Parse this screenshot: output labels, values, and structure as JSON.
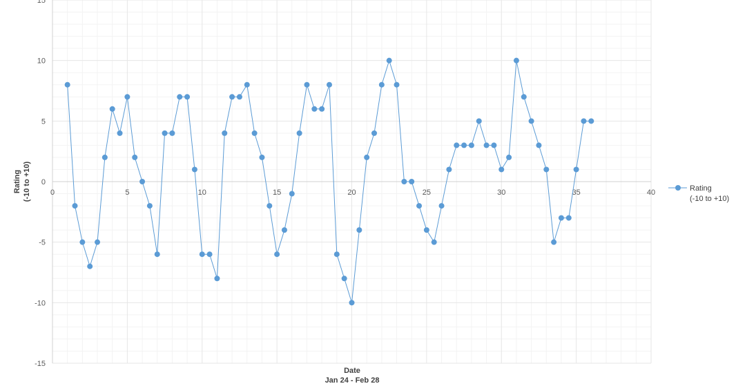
{
  "chart_data": {
    "type": "line",
    "title": "",
    "xlabel": "Date",
    "xlabel_sub": "Jan 24 - Feb 28",
    "ylabel": "Rating",
    "ylabel_sub": "(-10 to +10)",
    "xlim": [
      0,
      40
    ],
    "ylim": [
      -15,
      15
    ],
    "x_ticks": [
      0,
      5,
      10,
      15,
      20,
      25,
      30,
      35,
      40
    ],
    "y_ticks": [
      -15,
      -10,
      -5,
      0,
      5,
      10,
      15
    ],
    "grid": true,
    "minor_grid": true,
    "legend_position": "right",
    "series": [
      {
        "name": "Rating (-10 to +10)",
        "legend_line1": "Rating",
        "legend_line2": "(-10 to +10)",
        "color": "#5b9bd5",
        "marker": "circle",
        "x": [
          1,
          1.5,
          2,
          2.5,
          3,
          3.5,
          4,
          4.5,
          5,
          5.5,
          6,
          6.5,
          7,
          7.5,
          8,
          8.5,
          9,
          9.5,
          10,
          10.5,
          11,
          11.5,
          12,
          12.5,
          13,
          13.5,
          14,
          14.5,
          15,
          15.5,
          16,
          16.5,
          17,
          17.5,
          18,
          18.5,
          19,
          19.5,
          20,
          20.5,
          21,
          21.5,
          22,
          22.5,
          23,
          23.5,
          24,
          24.5,
          25,
          25.5,
          26,
          26.5,
          27,
          27.5,
          28,
          28.5,
          29,
          29.5,
          30,
          30.5,
          31,
          31.5,
          32,
          32.5,
          33,
          33.5,
          34,
          34.5,
          35,
          35.5,
          36
        ],
        "values": [
          8,
          -2,
          -5,
          -7,
          -5,
          2,
          6,
          4,
          7,
          2,
          0,
          -2,
          -6,
          4,
          4,
          7,
          7,
          1,
          -6,
          -6,
          -8,
          4,
          7,
          7,
          8,
          4,
          2,
          -2,
          -6,
          -4,
          -1,
          4,
          8,
          6,
          6,
          8,
          -6,
          -8,
          -10,
          -4,
          2,
          4,
          8,
          10,
          8,
          0,
          0,
          -2,
          -4,
          -5,
          -2,
          1,
          3,
          3,
          3,
          5,
          3,
          3,
          1,
          2,
          10,
          7,
          5,
          3,
          1,
          -5,
          -3,
          -3,
          1,
          5,
          5
        ]
      }
    ]
  }
}
